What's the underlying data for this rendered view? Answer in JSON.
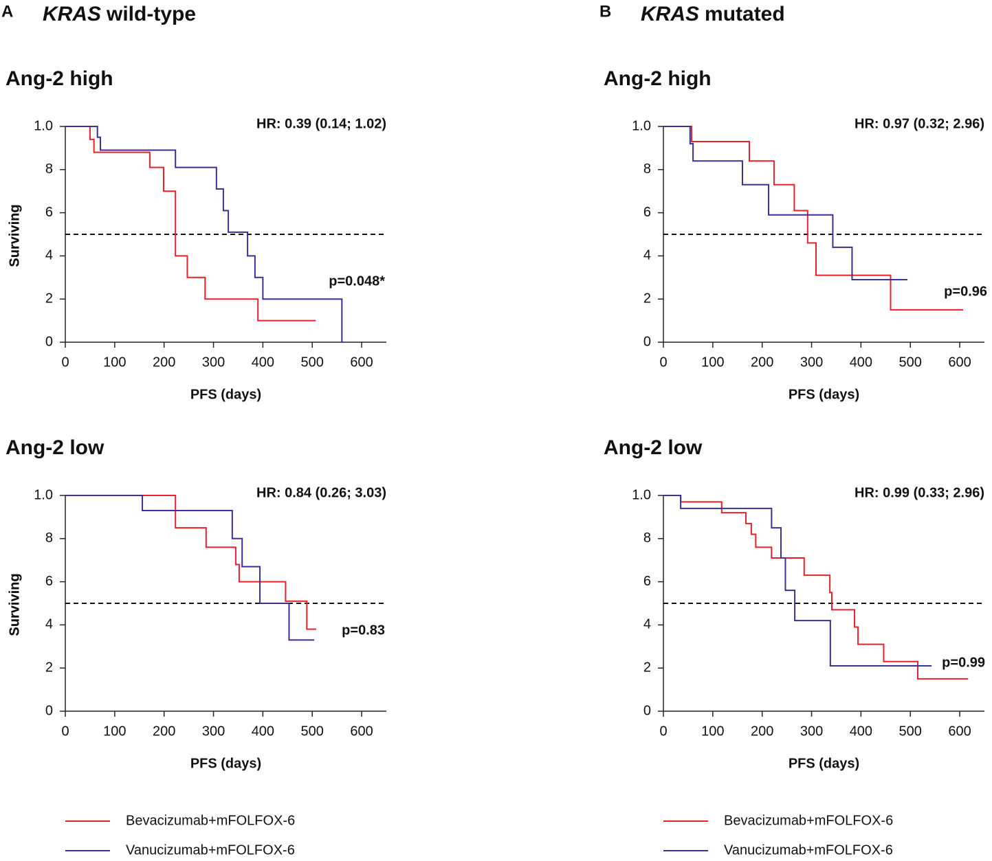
{
  "panels": [
    {
      "letter": "A",
      "gene": "KRAS",
      "status": "wild-type"
    },
    {
      "letter": "B",
      "gene": "KRAS",
      "status": "mutated"
    }
  ],
  "chart_data": [
    {
      "type": "step",
      "title": "Ang-2 high",
      "xlabel": "PFS (days)",
      "ylabel": "Surviving",
      "hr": "HR: 0.39 (0.14; 1.02)",
      "pvalue": "p=0.048*",
      "xlim": [
        0,
        650
      ],
      "xticks": [
        0,
        100,
        200,
        300,
        400,
        500,
        600
      ],
      "ylim": [
        0,
        1
      ],
      "yticks": [
        0,
        {
          "value": 0.2,
          "label": "2"
        },
        {
          "value": 0.4,
          "label": "4"
        },
        {
          "value": 0.6,
          "label": "6"
        },
        {
          "value": 0.8,
          "label": "8"
        },
        {
          "value": 1,
          "label": "1.0"
        }
      ],
      "hline": 0.5,
      "series": [
        {
          "name": "Bevacizumab+mFOLFOX-6",
          "color": "#e8202a",
          "x": [
            0,
            50,
            58,
            171,
            199,
            223,
            247,
            283,
            390,
            507
          ],
          "values": [
            1,
            0.94,
            0.88,
            0.81,
            0.7,
            0.4,
            0.3,
            0.2,
            0.1,
            0.1
          ]
        },
        {
          "name": "Vanucizumab+mFOLFOX-6",
          "color": "#3b2f8f",
          "x": [
            0,
            65,
            71,
            223,
            306,
            320,
            330,
            369,
            384,
            400,
            560
          ],
          "values": [
            1,
            0.95,
            0.89,
            0.81,
            0.71,
            0.61,
            0.51,
            0.4,
            0.3,
            0.2,
            0
          ]
        }
      ]
    },
    {
      "type": "step",
      "title": "Ang-2 low",
      "xlabel": "PFS (days)",
      "ylabel": "Surviving",
      "hr": "HR: 0.84 (0.26; 3.03)",
      "pvalue": "p=0.83",
      "xlim": [
        0,
        650
      ],
      "xticks": [
        0,
        100,
        200,
        300,
        400,
        500,
        600
      ],
      "ylim": [
        0,
        1
      ],
      "yticks": [
        0,
        {
          "value": 0.2,
          "label": "2"
        },
        {
          "value": 0.4,
          "label": "4"
        },
        {
          "value": 0.6,
          "label": "6"
        },
        {
          "value": 0.8,
          "label": "8"
        },
        {
          "value": 1,
          "label": "1.0"
        }
      ],
      "hline": 0.5,
      "series": [
        {
          "name": "Bevacizumab+mFOLFOX-6",
          "color": "#e8202a",
          "x": [
            0,
            223,
            285,
            345,
            352,
            446,
            489,
            508
          ],
          "values": [
            1,
            0.85,
            0.76,
            0.68,
            0.6,
            0.51,
            0.38,
            0.38
          ]
        },
        {
          "name": "Vanucizumab+mFOLFOX-6",
          "color": "#3b2f8f",
          "x": [
            0,
            156,
            338,
            358,
            394,
            453,
            504
          ],
          "values": [
            1,
            0.93,
            0.8,
            0.67,
            0.5,
            0.33,
            0.33
          ]
        }
      ]
    },
    {
      "type": "step",
      "title": "Ang-2 high",
      "xlabel": "PFS (days)",
      "ylabel": "Surviving",
      "hr": "HR: 0.97 (0.32; 2.96)",
      "pvalue": "p=0.96",
      "xlim": [
        0,
        650
      ],
      "xticks": [
        0,
        100,
        200,
        300,
        400,
        500,
        600
      ],
      "ylim": [
        0,
        1
      ],
      "yticks": [
        0,
        {
          "value": 0.2,
          "label": "2"
        },
        {
          "value": 0.4,
          "label": "4"
        },
        {
          "value": 0.6,
          "label": "6"
        },
        {
          "value": 0.8,
          "label": "8"
        },
        {
          "value": 1,
          "label": "1.0"
        }
      ],
      "hline": 0.5,
      "series": [
        {
          "name": "Bevacizumab+mFOLFOX-6",
          "color": "#e8202a",
          "x": [
            0,
            57,
            174,
            224,
            265,
            292,
            309,
            460,
            607
          ],
          "values": [
            1,
            0.93,
            0.84,
            0.73,
            0.61,
            0.46,
            0.31,
            0.15,
            0.15
          ]
        },
        {
          "name": "Vanucizumab+mFOLFOX-6",
          "color": "#3b2f8f",
          "x": [
            0,
            54,
            60,
            160,
            213,
            343,
            382,
            494
          ],
          "values": [
            1,
            0.92,
            0.84,
            0.73,
            0.59,
            0.44,
            0.29,
            0.29
          ]
        }
      ]
    },
    {
      "type": "step",
      "title": "Ang-2 low",
      "xlabel": "PFS (days)",
      "ylabel": "Surviving",
      "hr": "HR: 0.99 (0.33; 2.96)",
      "pvalue": "p=0.99",
      "xlim": [
        0,
        650
      ],
      "xticks": [
        0,
        100,
        200,
        300,
        400,
        500,
        600
      ],
      "ylim": [
        0,
        1
      ],
      "yticks": [
        0,
        {
          "value": 0.2,
          "label": "2"
        },
        {
          "value": 0.4,
          "label": "4"
        },
        {
          "value": 0.6,
          "label": "6"
        },
        {
          "value": 0.8,
          "label": "8"
        },
        {
          "value": 1,
          "label": "1.0"
        }
      ],
      "hline": 0.5,
      "series": [
        {
          "name": "Bevacizumab+mFOLFOX-6",
          "color": "#e8202a",
          "x": [
            0,
            35,
            118,
            167,
            178,
            187,
            219,
            285,
            337,
            341,
            387,
            394,
            446,
            515,
            617
          ],
          "values": [
            1,
            0.97,
            0.92,
            0.87,
            0.82,
            0.76,
            0.71,
            0.63,
            0.55,
            0.47,
            0.39,
            0.31,
            0.23,
            0.15,
            0.15
          ]
        },
        {
          "name": "Vanucizumab+mFOLFOX-6",
          "color": "#3b2f8f",
          "x": [
            0,
            35,
            219,
            238,
            247,
            266,
            338,
            543
          ],
          "values": [
            1,
            0.94,
            0.85,
            0.71,
            0.56,
            0.42,
            0.21,
            0.21
          ]
        }
      ]
    }
  ]
}
